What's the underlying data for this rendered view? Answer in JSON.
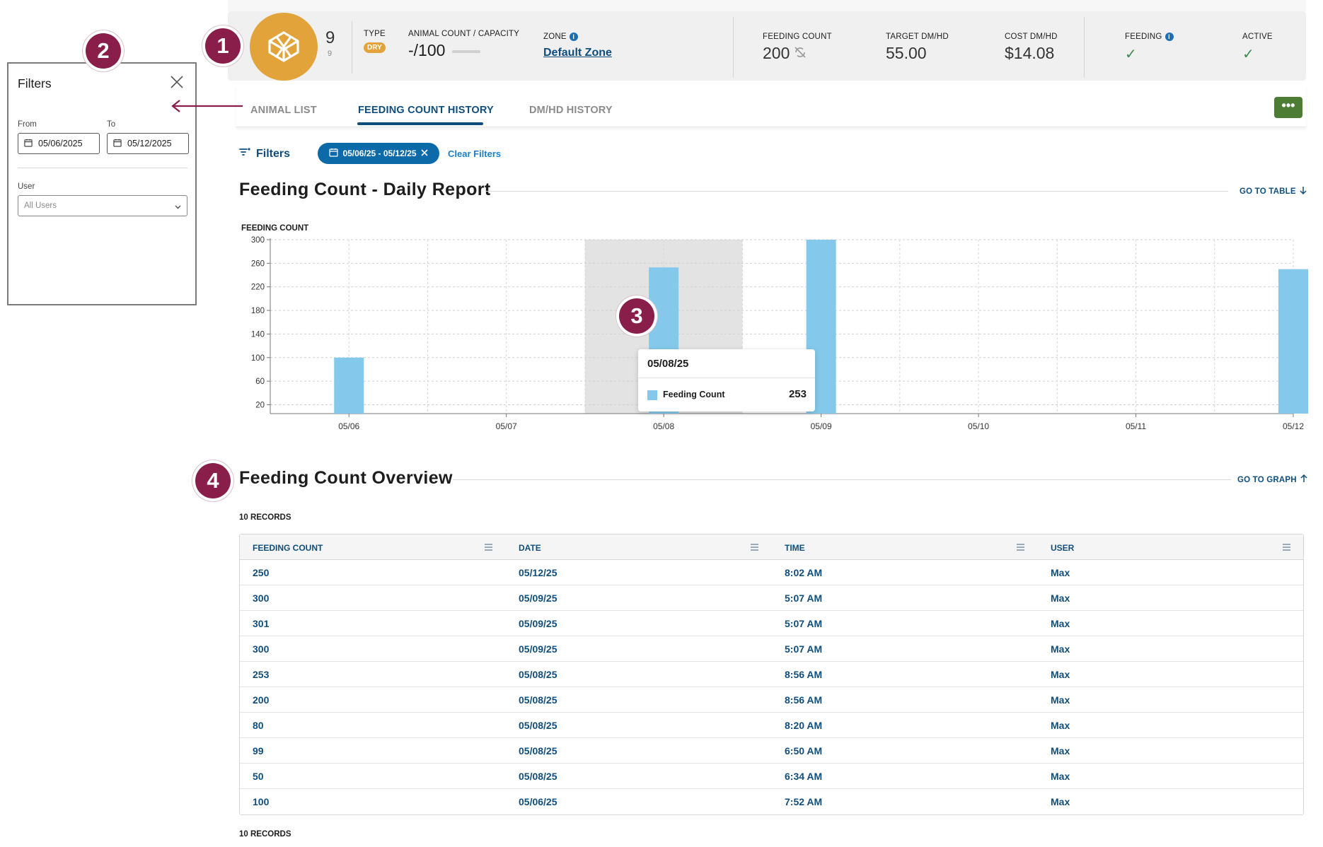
{
  "markers": [
    "1",
    "2",
    "3",
    "4"
  ],
  "header": {
    "count_main": "9",
    "count_sub": "9",
    "type_label": "TYPE",
    "type_badge": "DRY",
    "animal_label": "ANIMAL COUNT / CAPACITY",
    "animal_value": "-/100",
    "zone_label": "ZONE",
    "zone_value": "Default Zone",
    "feeding_count_label": "FEEDING COUNT",
    "feeding_count_value": "200",
    "target_label": "TARGET DM/HD",
    "target_value": "55.00",
    "cost_label": "COST DM/HD",
    "cost_value": "$14.08",
    "feeding_label": "FEEDING",
    "active_label": "ACTIVE",
    "info_glyph": "i",
    "check_glyph": "✓"
  },
  "tabs": [
    {
      "label": "ANIMAL LIST",
      "active": false
    },
    {
      "label": "FEEDING COUNT HISTORY",
      "active": true
    },
    {
      "label": "DM/HD HISTORY",
      "active": false
    }
  ],
  "more_button": "•••",
  "filters": {
    "label": "Filters",
    "chip": "05/06/25 - 05/12/25",
    "clear": "Clear Filters"
  },
  "report": {
    "title": "Feeding Count - Daily Report",
    "goto": "GO TO TABLE",
    "chart_label": "FEEDING COUNT"
  },
  "chart_data": {
    "type": "bar",
    "title": "Feeding Count - Daily Report",
    "ylabel": "FEEDING COUNT",
    "xlabel": "",
    "categories": [
      "05/06",
      "05/07",
      "05/08",
      "05/09",
      "05/10",
      "05/11",
      "05/12"
    ],
    "series": [
      {
        "name": "Feeding Count",
        "values": [
          100,
          0,
          253,
          300,
          0,
          0,
          250
        ]
      }
    ],
    "yticks": [
      20,
      60,
      100,
      140,
      180,
      220,
      260,
      300
    ],
    "ylim": [
      5,
      300
    ],
    "grid": true,
    "highlighted_category": "05/08",
    "colors": {
      "bar": "#84c9ec",
      "highlight": "#e3e3e3"
    }
  },
  "tooltip": {
    "date": "05/08/25",
    "series": "Feeding Count",
    "value": "253"
  },
  "overview": {
    "title": "Feeding Count Overview",
    "goto": "GO TO GRAPH",
    "records": "10 RECORDS",
    "records_bottom": "10 RECORDS",
    "columns": [
      "FEEDING COUNT",
      "DATE",
      "TIME",
      "USER"
    ],
    "rows": [
      [
        "250",
        "05/12/25",
        "8:02 AM",
        "Max"
      ],
      [
        "300",
        "05/09/25",
        "5:07 AM",
        "Max"
      ],
      [
        "301",
        "05/09/25",
        "5:07 AM",
        "Max"
      ],
      [
        "300",
        "05/09/25",
        "5:07 AM",
        "Max"
      ],
      [
        "253",
        "05/08/25",
        "8:56 AM",
        "Max"
      ],
      [
        "200",
        "05/08/25",
        "8:56 AM",
        "Max"
      ],
      [
        "80",
        "05/08/25",
        "8:20 AM",
        "Max"
      ],
      [
        "99",
        "05/08/25",
        "6:50 AM",
        "Max"
      ],
      [
        "50",
        "05/08/25",
        "6:34 AM",
        "Max"
      ],
      [
        "100",
        "05/06/25",
        "7:52 AM",
        "Max"
      ]
    ]
  },
  "filters_panel": {
    "title": "Filters",
    "from_label": "From",
    "from_value": "05/06/2025",
    "to_label": "To",
    "to_value": "05/12/2025",
    "user_label": "User",
    "user_value": "All Users"
  },
  "colors": {
    "accent": "#0f4e7c",
    "marker": "#8a1e4a",
    "pen": "#e2a33a",
    "bar": "#84c9ec",
    "action": "#4d7d35"
  }
}
